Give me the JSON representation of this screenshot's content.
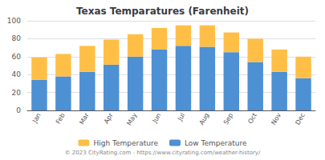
{
  "chart_data": {
    "type": "bar",
    "title": "Texas Temparatures (Farenheit)",
    "categories": [
      "Jan",
      "Feb",
      "Mar",
      "Apr",
      "May",
      "Jun",
      "Jul",
      "Aug",
      "Sep",
      "Oct",
      "Nov",
      "Dec"
    ],
    "stacked": true,
    "series": [
      {
        "name": "Low Temperature",
        "color": "#4d90d4",
        "values": [
          34,
          38,
          43,
          51,
          60,
          68,
          72,
          71,
          65,
          54,
          43,
          36
        ]
      },
      {
        "name": "High Temperature",
        "color": "#ffbf47",
        "values": [
          25,
          25,
          29,
          28,
          25,
          24,
          23,
          24,
          22,
          26,
          25,
          24
        ]
      }
    ],
    "ylim": [
      0,
      100
    ],
    "yticks": [
      0,
      20,
      40,
      60,
      80,
      100
    ],
    "grid": true,
    "legend": "bottom",
    "annotations": [
      "© 2023 CityRating.com - https://www.cityrating.com/weather-history/"
    ]
  }
}
